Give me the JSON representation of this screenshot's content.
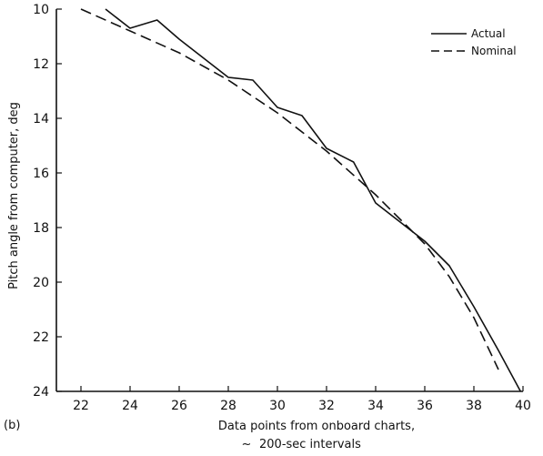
{
  "chart_data": {
    "type": "line",
    "panel_label": "(b)",
    "xlabel_lines": [
      "Data points from onboard charts,",
      "200-sec intervals"
    ],
    "xlabel_prefix_symbol": "~",
    "ylabel": "Pitch angle from computer, deg",
    "xlim": [
      21,
      40
    ],
    "ylim": [
      10,
      24
    ],
    "y_inverted": true,
    "x_ticks": [
      22,
      24,
      26,
      28,
      30,
      32,
      34,
      36,
      38,
      40
    ],
    "y_ticks": [
      10,
      12,
      14,
      16,
      18,
      20,
      22,
      24
    ],
    "grid": false,
    "legend_position": "top-right",
    "series": [
      {
        "name": "Actual",
        "line_style": "solid",
        "color": "#111111",
        "points": [
          [
            23.0,
            10.0
          ],
          [
            24.0,
            10.7
          ],
          [
            25.1,
            10.4
          ],
          [
            26.0,
            11.1
          ],
          [
            27.0,
            11.8
          ],
          [
            28.0,
            12.5
          ],
          [
            29.0,
            12.6
          ],
          [
            30.0,
            13.6
          ],
          [
            31.0,
            13.9
          ],
          [
            32.0,
            15.1
          ],
          [
            33.1,
            15.6
          ],
          [
            34.0,
            17.1
          ],
          [
            35.0,
            17.8
          ],
          [
            36.0,
            18.5
          ],
          [
            37.0,
            19.4
          ],
          [
            38.0,
            20.9
          ],
          [
            39.0,
            22.5
          ],
          [
            39.9,
            24.0
          ]
        ]
      },
      {
        "name": "Nominal",
        "line_style": "dashed",
        "color": "#111111",
        "points": [
          [
            22.0,
            10.0
          ],
          [
            24.0,
            10.8
          ],
          [
            26.0,
            11.6
          ],
          [
            28.0,
            12.6
          ],
          [
            30.0,
            13.8
          ],
          [
            32.0,
            15.2
          ],
          [
            34.0,
            16.8
          ],
          [
            35.0,
            17.7
          ],
          [
            36.0,
            18.6
          ],
          [
            37.0,
            19.8
          ],
          [
            38.0,
            21.3
          ],
          [
            39.0,
            23.2
          ]
        ]
      }
    ]
  }
}
